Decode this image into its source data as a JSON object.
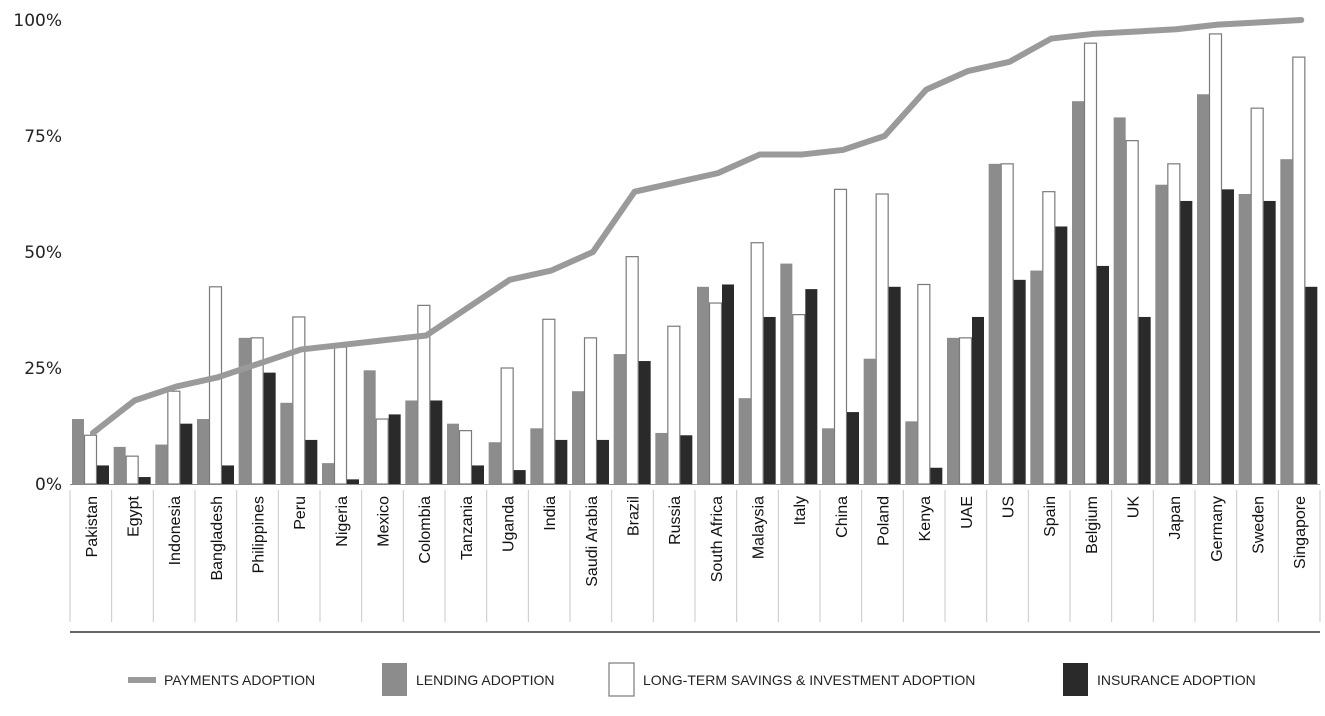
{
  "chart_data": {
    "type": "bar",
    "categories": [
      "Pakistan",
      "Egypt",
      "Indonesia",
      "Bangladesh",
      "Philippines",
      "Peru",
      "Nigeria",
      "Mexico",
      "Colombia",
      "Tanzania",
      "Uganda",
      "India",
      "Saudi Arabia",
      "Brazil",
      "Russia",
      "South Africa",
      "Malaysia",
      "Italy",
      "China",
      "Poland",
      "Kenya",
      "UAE",
      "US",
      "Spain",
      "Belgium",
      "UK",
      "Japan",
      "Germany",
      "Sweden",
      "Singapore"
    ],
    "series": [
      {
        "name": "PAYMENTS ADOPTION",
        "kind": "line",
        "color": "#9a9a9a",
        "values": [
          11,
          18,
          21,
          23,
          26,
          29,
          30,
          31,
          32,
          38,
          44,
          46,
          50,
          63,
          65,
          67,
          71,
          71,
          72,
          75,
          85,
          89,
          91,
          96,
          97,
          97.5,
          98,
          99,
          99.5,
          100
        ]
      },
      {
        "name": "LENDING ADOPTION",
        "kind": "bar",
        "color": "#8c8c8c",
        "values": [
          14,
          8,
          8.5,
          14,
          31.5,
          17.5,
          4.5,
          24.5,
          18,
          13,
          9,
          12,
          20,
          28,
          11,
          42.5,
          18.5,
          47.5,
          12,
          27,
          13.5,
          31.5,
          69,
          46,
          82.5,
          79,
          64.5,
          84,
          62.5,
          70
        ]
      },
      {
        "name": "LONG-TERM SAVINGS & INVESTMENT ADOPTION",
        "kind": "bar",
        "color": "#ffffff",
        "values": [
          10.5,
          6,
          20,
          42.5,
          31.5,
          36,
          29.5,
          14,
          38.5,
          11.5,
          25,
          35.5,
          31.5,
          49,
          34,
          39,
          52,
          36.5,
          63.5,
          62.5,
          43,
          31.5,
          69,
          63,
          95,
          74,
          69,
          97,
          81,
          92
        ]
      },
      {
        "name": "INSURANCE ADOPTION",
        "kind": "bar",
        "color": "#2a2a2a",
        "values": [
          4,
          1.5,
          13,
          4,
          24,
          9.5,
          1,
          15,
          18,
          4,
          3,
          9.5,
          9.5,
          26.5,
          10.5,
          43,
          36,
          42,
          15.5,
          42.5,
          3.5,
          36,
          44,
          55.5,
          47,
          36,
          61,
          63.5,
          61,
          42.5
        ]
      }
    ],
    "y_ticks": [
      "0%",
      "25%",
      "50%",
      "75%",
      "100%"
    ],
    "ylim": [
      0,
      100
    ],
    "grid": false,
    "legend_position": "bottom"
  }
}
